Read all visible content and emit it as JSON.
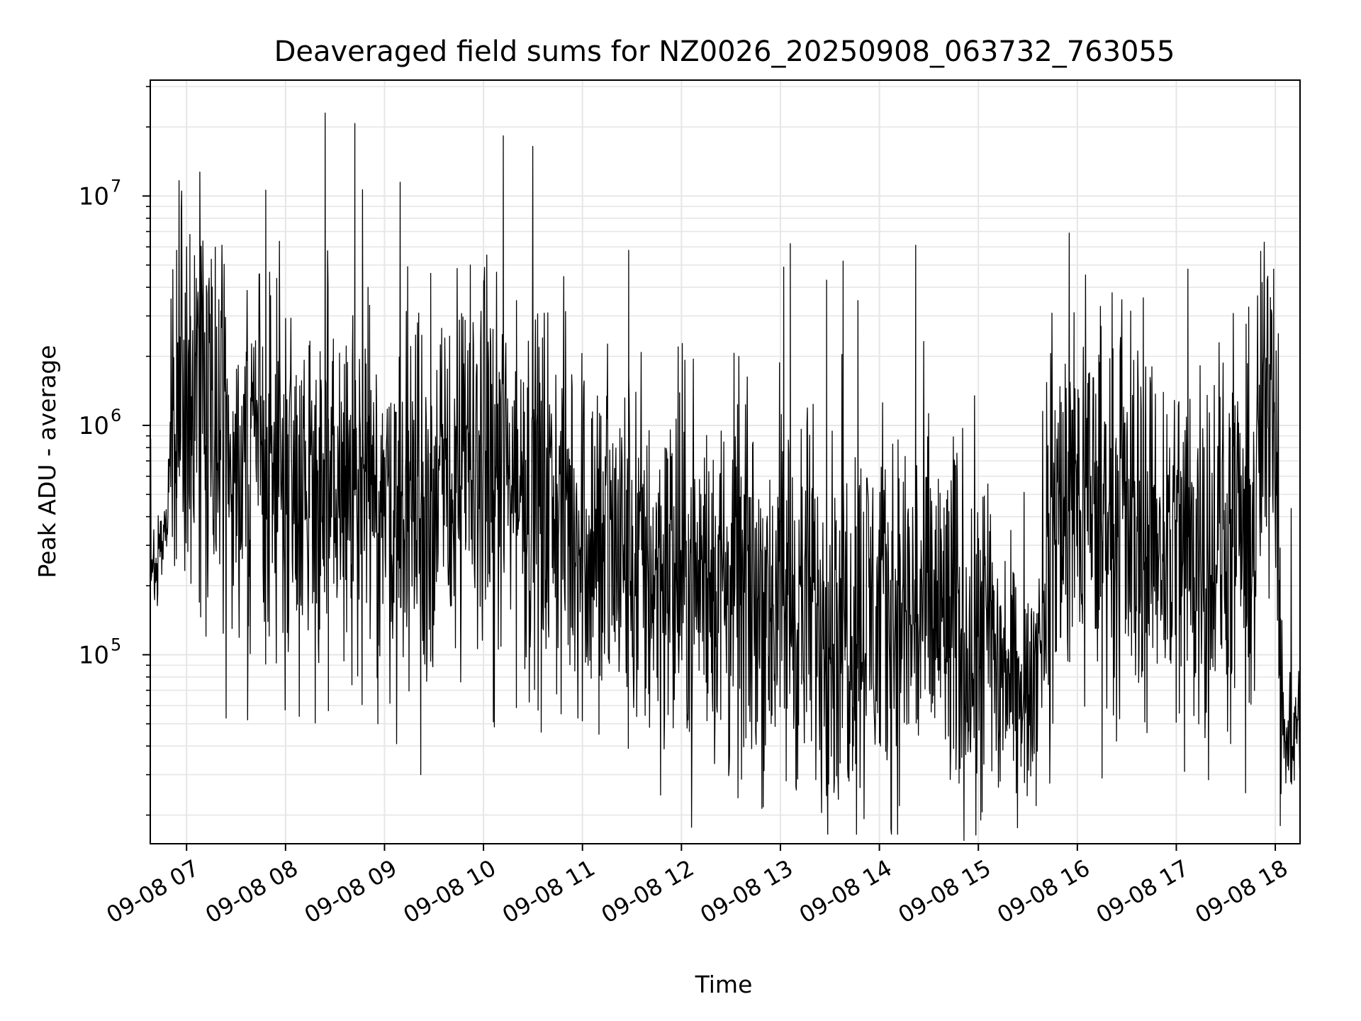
{
  "chart_data": {
    "type": "line",
    "title": "Deaveraged field sums for NZ0026_20250908_063732_763055",
    "xlabel": "Time",
    "ylabel": "Peak ADU - average",
    "yscale": "log",
    "ylim": [
      15000,
      32000000
    ],
    "xlim": [
      "2025-09-08 06:38",
      "2025-09-08 18:15"
    ],
    "grid": true,
    "line_color": "#000000",
    "grid_color": "#e6e6e6",
    "x_ticks": [
      {
        "t": "2025-09-08 07:00",
        "label": "09-08 07"
      },
      {
        "t": "2025-09-08 08:00",
        "label": "09-08 08"
      },
      {
        "t": "2025-09-08 09:00",
        "label": "09-08 09"
      },
      {
        "t": "2025-09-08 10:00",
        "label": "09-08 10"
      },
      {
        "t": "2025-09-08 11:00",
        "label": "09-08 11"
      },
      {
        "t": "2025-09-08 12:00",
        "label": "09-08 12"
      },
      {
        "t": "2025-09-08 13:00",
        "label": "09-08 13"
      },
      {
        "t": "2025-09-08 14:00",
        "label": "09-08 14"
      },
      {
        "t": "2025-09-08 15:00",
        "label": "09-08 15"
      },
      {
        "t": "2025-09-08 16:00",
        "label": "09-08 16"
      },
      {
        "t": "2025-09-08 17:00",
        "label": "09-08 17"
      },
      {
        "t": "2025-09-08 18:00",
        "label": "09-08 18"
      }
    ],
    "y_ticks": [
      {
        "value": 100000,
        "base": "10",
        "exp": "5"
      },
      {
        "value": 1000000,
        "base": "10",
        "exp": "6"
      },
      {
        "value": 10000000,
        "base": "10",
        "exp": "7"
      }
    ],
    "series": [
      {
        "typical_level": [
          [
            "2025-09-08 06:38",
            200000
          ],
          [
            "2025-09-08 06:48",
            400000
          ],
          [
            "2025-09-08 06:55",
            1500000
          ],
          [
            "2025-09-08 07:30",
            800000
          ],
          [
            "2025-09-08 08:30",
            500000
          ],
          [
            "2025-09-08 09:30",
            450000
          ],
          [
            "2025-09-08 10:00",
            700000
          ],
          [
            "2025-09-08 10:30",
            500000
          ],
          [
            "2025-09-08 11:30",
            250000
          ],
          [
            "2025-09-08 12:30",
            200000
          ],
          [
            "2025-09-08 13:30",
            150000
          ],
          [
            "2025-09-08 14:30",
            150000
          ],
          [
            "2025-09-08 15:00",
            120000
          ],
          [
            "2025-09-08 15:30",
            60000
          ],
          [
            "2025-09-08 15:50",
            500000
          ],
          [
            "2025-09-08 16:30",
            400000
          ],
          [
            "2025-09-08 17:00",
            300000
          ],
          [
            "2025-09-08 17:45",
            300000
          ],
          [
            "2025-09-08 17:58",
            2000000
          ],
          [
            "2025-09-08 18:02",
            600000
          ],
          [
            "2025-09-08 18:05",
            40000
          ],
          [
            "2025-09-08 18:15",
            50000
          ]
        ],
        "spikes": [
          [
            "2025-09-08 06:54",
            5800000
          ],
          [
            "2025-09-08 07:02",
            6800000
          ],
          [
            "2025-09-08 07:15",
            5300000
          ],
          [
            "2025-09-08 07:48",
            10600000
          ],
          [
            "2025-09-08 08:24",
            23000000
          ],
          [
            "2025-09-08 08:42",
            20700000
          ],
          [
            "2025-09-08 08:50",
            4000000
          ],
          [
            "2025-09-08 09:20",
            2800000
          ],
          [
            "2025-09-08 09:28",
            4600000
          ],
          [
            "2025-09-08 09:52",
            5000000
          ],
          [
            "2025-09-08 10:12",
            18300000
          ],
          [
            "2025-09-08 10:20",
            3500000
          ],
          [
            "2025-09-08 11:28",
            5800000
          ],
          [
            "2025-09-08 11:58",
            2200000
          ],
          [
            "2025-09-08 13:02",
            4900000
          ],
          [
            "2025-09-08 13:06",
            6200000
          ],
          [
            "2025-09-08 13:28",
            4300000
          ],
          [
            "2025-09-08 13:38",
            5200000
          ],
          [
            "2025-09-08 13:47",
            3500000
          ],
          [
            "2025-09-08 14:22",
            6100000
          ],
          [
            "2025-09-08 15:58",
            3100000
          ],
          [
            "2025-09-08 16:14",
            3300000
          ],
          [
            "2025-09-08 16:40",
            3600000
          ],
          [
            "2025-09-08 17:07",
            4800000
          ],
          [
            "2025-09-08 17:52",
            4200000
          ],
          [
            "2025-09-08 17:59",
            4800000
          ]
        ],
        "dips": [
          [
            "2025-09-08 07:24",
            53000
          ],
          [
            "2025-09-08 07:37",
            52000
          ],
          [
            "2025-09-08 08:26",
            57000
          ],
          [
            "2025-09-08 08:56",
            50000
          ],
          [
            "2025-09-08 09:22",
            30000
          ],
          [
            "2025-09-08 10:06",
            51000
          ],
          [
            "2025-09-08 10:35",
            46000
          ],
          [
            "2025-09-08 11:10",
            45000
          ],
          [
            "2025-09-08 11:55",
            48000
          ],
          [
            "2025-09-08 14:45",
            39000
          ],
          [
            "2025-09-08 15:23",
            25000
          ],
          [
            "2025-09-08 15:35",
            22000
          ],
          [
            "2025-09-08 16:15",
            29000
          ],
          [
            "2025-09-08 17:05",
            31000
          ],
          [
            "2025-09-08 17:42",
            25000
          ],
          [
            "2025-09-08 18:03",
            18000
          ]
        ]
      }
    ]
  }
}
